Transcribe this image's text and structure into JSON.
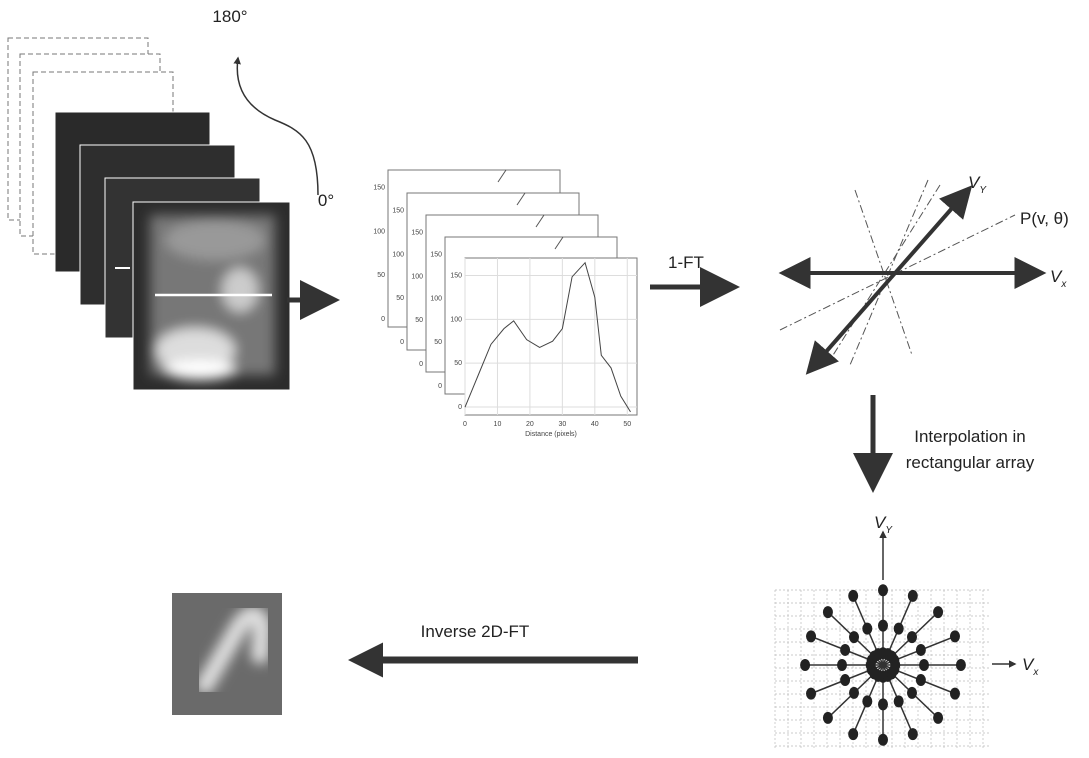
{
  "labels": {
    "angle_end": "180°",
    "angle_start": "0°",
    "ft1": "1-FT",
    "p_label": "P(v, θ)",
    "interp_line1": "Interpolation in",
    "interp_line2": "rectangular array",
    "inverse": "Inverse 2D-FT",
    "v_axis": "V",
    "sub_y": "Y",
    "sub_x": "x"
  },
  "profile_plot": {
    "x_label": "Distance (pixels)",
    "xticks": [
      0,
      10,
      20,
      30,
      40,
      50
    ],
    "yticks": [
      0,
      50,
      100,
      150
    ]
  }
}
